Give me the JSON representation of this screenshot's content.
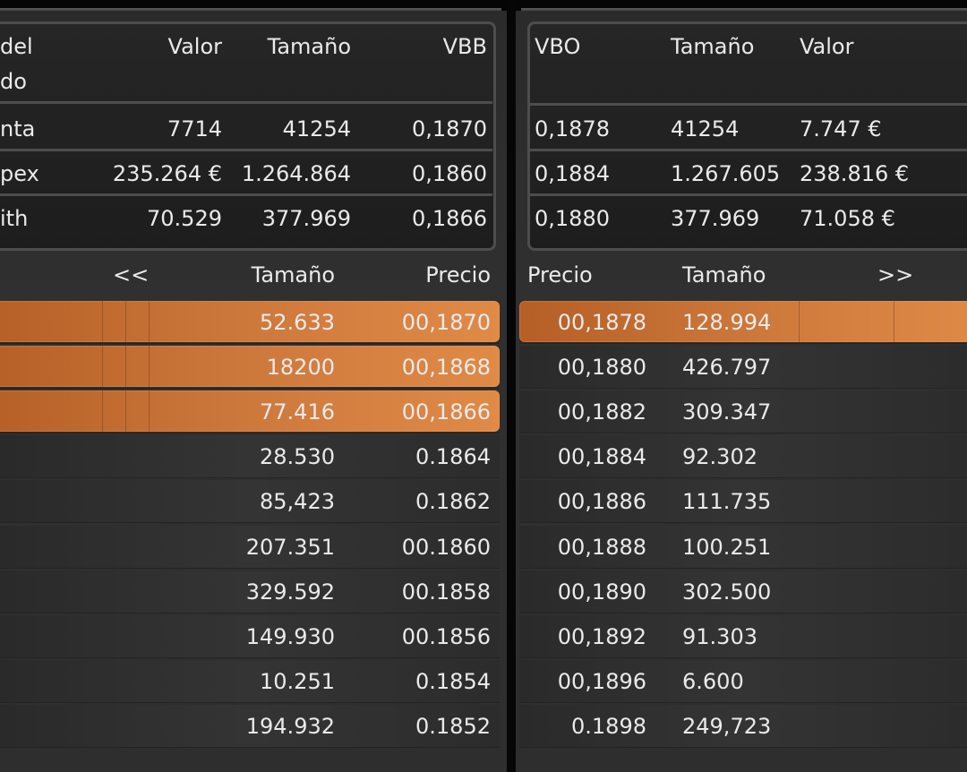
{
  "quote_left": {
    "headers": {
      "name_line1": "del",
      "name_line2": "do",
      "value": "Valor",
      "size": "Tamaño",
      "vbb": "VBB"
    },
    "rows": [
      {
        "name": "nta",
        "value": "7714",
        "size": "41254",
        "vbb": "0,1870"
      },
      {
        "name": "pex",
        "value": "235.264 €",
        "size": "1.264.864",
        "vbb": "0,1860"
      },
      {
        "name": "ith",
        "value": "70.529",
        "size": "377.969",
        "vbb": "0,1866"
      }
    ]
  },
  "quote_right": {
    "headers": {
      "vbo": "VBO",
      "size": "Tamaño",
      "value": "Valor"
    },
    "rows": [
      {
        "vbo": "0,1878",
        "size": "41254",
        "value": "7.747 €"
      },
      {
        "vbo": "0,1884",
        "size": "1.267.605",
        "value": "238.816 €"
      },
      {
        "vbo": "0,1880",
        "size": "377.969",
        "value": "71.058 €"
      }
    ]
  },
  "bids": {
    "headers": {
      "nav": "<<",
      "size": "Tamaño",
      "price": "Precio"
    },
    "rows": [
      {
        "size": "52.633",
        "price": "00,1870",
        "highlighted": true
      },
      {
        "size": "18200",
        "price": "00,1868",
        "highlighted": true
      },
      {
        "size": "77.416",
        "price": "00,1866",
        "highlighted": true
      },
      {
        "size": "28.530",
        "price": "0.1864",
        "highlighted": false
      },
      {
        "size": "85,423",
        "price": "0.1862",
        "highlighted": false
      },
      {
        "size": "207.351",
        "price": "00.1860",
        "highlighted": false
      },
      {
        "size": "329.592",
        "price": "00.1858",
        "highlighted": false
      },
      {
        "size": "149.930",
        "price": "00.1856",
        "highlighted": false
      },
      {
        "size": "10.251",
        "price": "0.1854",
        "highlighted": false
      },
      {
        "size": "194.932",
        "price": "0.1852",
        "highlighted": false
      }
    ]
  },
  "asks": {
    "headers": {
      "price": "Precio",
      "size": "Tamaño",
      "nav": ">>"
    },
    "rows": [
      {
        "price": "00,1878",
        "size": "128.994",
        "highlighted": true
      },
      {
        "price": "00,1880",
        "size": "426.797",
        "highlighted": false
      },
      {
        "price": "00,1882",
        "size": "309.347",
        "highlighted": false
      },
      {
        "price": "00,1884",
        "size": "92.302",
        "highlighted": false
      },
      {
        "price": "00,1886",
        "size": "111.735",
        "highlighted": false
      },
      {
        "price": "00,1888",
        "size": "100.251",
        "highlighted": false
      },
      {
        "price": "00,1890",
        "size": "302.500",
        "highlighted": false
      },
      {
        "price": "00,1892",
        "size": "91.303",
        "highlighted": false
      },
      {
        "price": "00,1896",
        "size": "6.600",
        "highlighted": false
      },
      {
        "price": "0.1898",
        "size": "249,723",
        "highlighted": false
      }
    ]
  },
  "colors": {
    "highlight": "#cf7a3d",
    "panel": "#2e2e2e",
    "border": "#4d4d4d",
    "text": "#eaeaea"
  }
}
